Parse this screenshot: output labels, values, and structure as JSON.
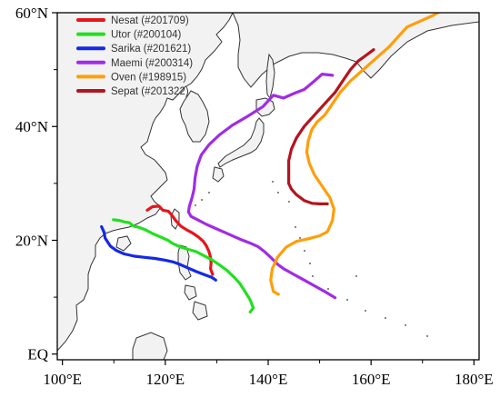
{
  "map": {
    "x_axis": {
      "label_suffix": "°E",
      "ticks": [
        {
          "value": 100,
          "label": "100°E"
        },
        {
          "value": 120,
          "label": "120°E"
        },
        {
          "value": 140,
          "label": "140°E"
        },
        {
          "value": 160,
          "label": "160°E"
        },
        {
          "value": 180,
          "label": "180°E"
        }
      ]
    },
    "y_axis": {
      "ticks": [
        {
          "value": 0,
          "label": "EQ"
        },
        {
          "value": 20,
          "label": "20°N"
        },
        {
          "value": 40,
          "label": "40°N"
        },
        {
          "value": 60,
          "label": "60°N"
        }
      ]
    },
    "extent": {
      "lon": [
        99,
        181
      ],
      "lat": [
        -1,
        60
      ]
    },
    "colors": {
      "land": "#f2f2f2",
      "coast": "#333333",
      "sea": "#ffffff"
    }
  },
  "chart_data": {
    "type": "line",
    "title": "",
    "xlabel": "",
    "ylabel": "",
    "xlim": [
      99,
      181
    ],
    "ylim": [
      -1,
      60
    ],
    "legend_position": "top-left",
    "series": [
      {
        "name": "Nesat (#201709)",
        "color": "#e8141c",
        "points": [
          [
            116.5,
            25.3
          ],
          [
            117.5,
            25.9
          ],
          [
            118.8,
            26.0
          ],
          [
            119.5,
            25.3
          ],
          [
            120.6,
            25.1
          ],
          [
            121.2,
            24.5
          ],
          [
            122.0,
            23.5
          ],
          [
            123.0,
            22.5
          ],
          [
            124.2,
            21.8
          ],
          [
            125.3,
            21.3
          ],
          [
            126.4,
            20.6
          ],
          [
            127.4,
            19.8
          ],
          [
            128.0,
            19.0
          ],
          [
            128.5,
            18.0
          ],
          [
            128.8,
            17.0
          ],
          [
            128.9,
            16.0
          ],
          [
            128.8,
            15.0
          ],
          [
            129.2,
            14.0
          ]
        ]
      },
      {
        "name": "Utor (#200104)",
        "color": "#22e01e",
        "points": [
          [
            109.9,
            23.6
          ],
          [
            111.0,
            23.5
          ],
          [
            112.2,
            23.2
          ],
          [
            113.0,
            23.1
          ],
          [
            113.8,
            22.5
          ],
          [
            114.8,
            22.3
          ],
          [
            116.0,
            21.9
          ],
          [
            117.5,
            21.2
          ],
          [
            119.0,
            20.6
          ],
          [
            120.5,
            20.0
          ],
          [
            121.5,
            19.4
          ],
          [
            123.0,
            18.8
          ],
          [
            124.5,
            18.4
          ],
          [
            126.0,
            18.0
          ],
          [
            127.5,
            17.3
          ],
          [
            129.0,
            16.6
          ],
          [
            130.5,
            15.7
          ],
          [
            132.0,
            14.7
          ],
          [
            133.5,
            13.4
          ],
          [
            134.5,
            12.4
          ],
          [
            135.5,
            11.0
          ],
          [
            136.5,
            9.5
          ],
          [
            137.1,
            8.1
          ],
          [
            136.5,
            7.4
          ]
        ]
      },
      {
        "name": "Sarika (#201621)",
        "color": "#1428e6",
        "points": [
          [
            107.6,
            22.4
          ],
          [
            108.1,
            21.4
          ],
          [
            108.3,
            20.4
          ],
          [
            109.3,
            19.0
          ],
          [
            110.5,
            18.2
          ],
          [
            112.0,
            17.6
          ],
          [
            114.0,
            17.2
          ],
          [
            116.0,
            17.0
          ],
          [
            118.0,
            16.8
          ],
          [
            120.0,
            16.5
          ],
          [
            121.5,
            16.2
          ],
          [
            123.0,
            15.7
          ],
          [
            124.5,
            15.1
          ],
          [
            126.0,
            14.5
          ],
          [
            127.5,
            14.0
          ],
          [
            129.0,
            13.5
          ],
          [
            129.8,
            13.0
          ]
        ]
      },
      {
        "name": "Maemi (#200314)",
        "color": "#a02ce6",
        "points": [
          [
            153.0,
            9.9
          ],
          [
            151.0,
            11.0
          ],
          [
            149.0,
            12.0
          ],
          [
            147.0,
            13.0
          ],
          [
            145.0,
            14.0
          ],
          [
            143.0,
            15.0
          ],
          [
            141.8,
            15.8
          ],
          [
            140.5,
            17.0
          ],
          [
            139.3,
            18.0
          ],
          [
            138.0,
            18.9
          ],
          [
            136.5,
            19.5
          ],
          [
            134.5,
            20.2
          ],
          [
            132.5,
            21.0
          ],
          [
            130.0,
            22.0
          ],
          [
            128.0,
            22.8
          ],
          [
            126.5,
            23.5
          ],
          [
            125.0,
            24.2
          ],
          [
            124.5,
            25.0
          ],
          [
            124.7,
            26.0
          ],
          [
            125.2,
            27.5
          ],
          [
            125.6,
            29.0
          ],
          [
            125.8,
            31.0
          ],
          [
            126.2,
            33.0
          ],
          [
            127.0,
            35.0
          ],
          [
            128.5,
            36.8
          ],
          [
            130.5,
            38.5
          ],
          [
            133.0,
            40.2
          ],
          [
            136.0,
            41.8
          ],
          [
            139.0,
            43.5
          ],
          [
            141.0,
            45.5
          ],
          [
            143.0,
            45.0
          ],
          [
            145.0,
            45.8
          ],
          [
            147.0,
            46.5
          ],
          [
            149.0,
            48.0
          ],
          [
            150.5,
            49.2
          ],
          [
            152.5,
            49.0
          ]
        ]
      },
      {
        "name": "Oven (#198915)",
        "color": "#ff9e0a",
        "points": [
          [
            142.0,
            10.5
          ],
          [
            141.0,
            11.0
          ],
          [
            140.5,
            13.0
          ],
          [
            140.8,
            15.0
          ],
          [
            141.8,
            17.0
          ],
          [
            143.5,
            18.8
          ],
          [
            145.5,
            19.8
          ],
          [
            148.0,
            20.3
          ],
          [
            150.0,
            20.8
          ],
          [
            151.5,
            21.5
          ],
          [
            152.5,
            23.5
          ],
          [
            152.8,
            25.5
          ],
          [
            152.0,
            27.5
          ],
          [
            150.5,
            29.5
          ],
          [
            149.0,
            31.5
          ],
          [
            148.0,
            33.5
          ],
          [
            147.5,
            35.5
          ],
          [
            147.8,
            37.5
          ],
          [
            148.5,
            39.5
          ],
          [
            149.5,
            40.8
          ],
          [
            151.0,
            42.0
          ],
          [
            152.5,
            44.0
          ],
          [
            154.0,
            46.0
          ],
          [
            156.0,
            48.0
          ],
          [
            158.5,
            50.0
          ],
          [
            161.0,
            52.0
          ],
          [
            163.5,
            54.0
          ],
          [
            165.5,
            56.0
          ],
          [
            167.0,
            57.5
          ],
          [
            169.5,
            58.5
          ],
          [
            172.0,
            59.5
          ],
          [
            174.0,
            60.5
          ]
        ]
      },
      {
        "name": "Sepat (#201322)",
        "color": "#b4141e",
        "points": [
          [
            151.5,
            26.4
          ],
          [
            150.0,
            26.4
          ],
          [
            148.5,
            26.5
          ],
          [
            147.0,
            27.0
          ],
          [
            145.5,
            28.0
          ],
          [
            144.5,
            29.0
          ],
          [
            144.0,
            30.0
          ],
          [
            144.0,
            32.0
          ],
          [
            144.0,
            34.0
          ],
          [
            144.5,
            36.0
          ],
          [
            145.5,
            38.0
          ],
          [
            147.0,
            40.0
          ],
          [
            149.0,
            42.0
          ],
          [
            151.0,
            44.0
          ],
          [
            153.0,
            46.0
          ],
          [
            154.5,
            48.0
          ],
          [
            156.0,
            50.0
          ],
          [
            157.5,
            51.5
          ],
          [
            159.0,
            52.5
          ],
          [
            160.5,
            53.5
          ]
        ]
      }
    ]
  }
}
